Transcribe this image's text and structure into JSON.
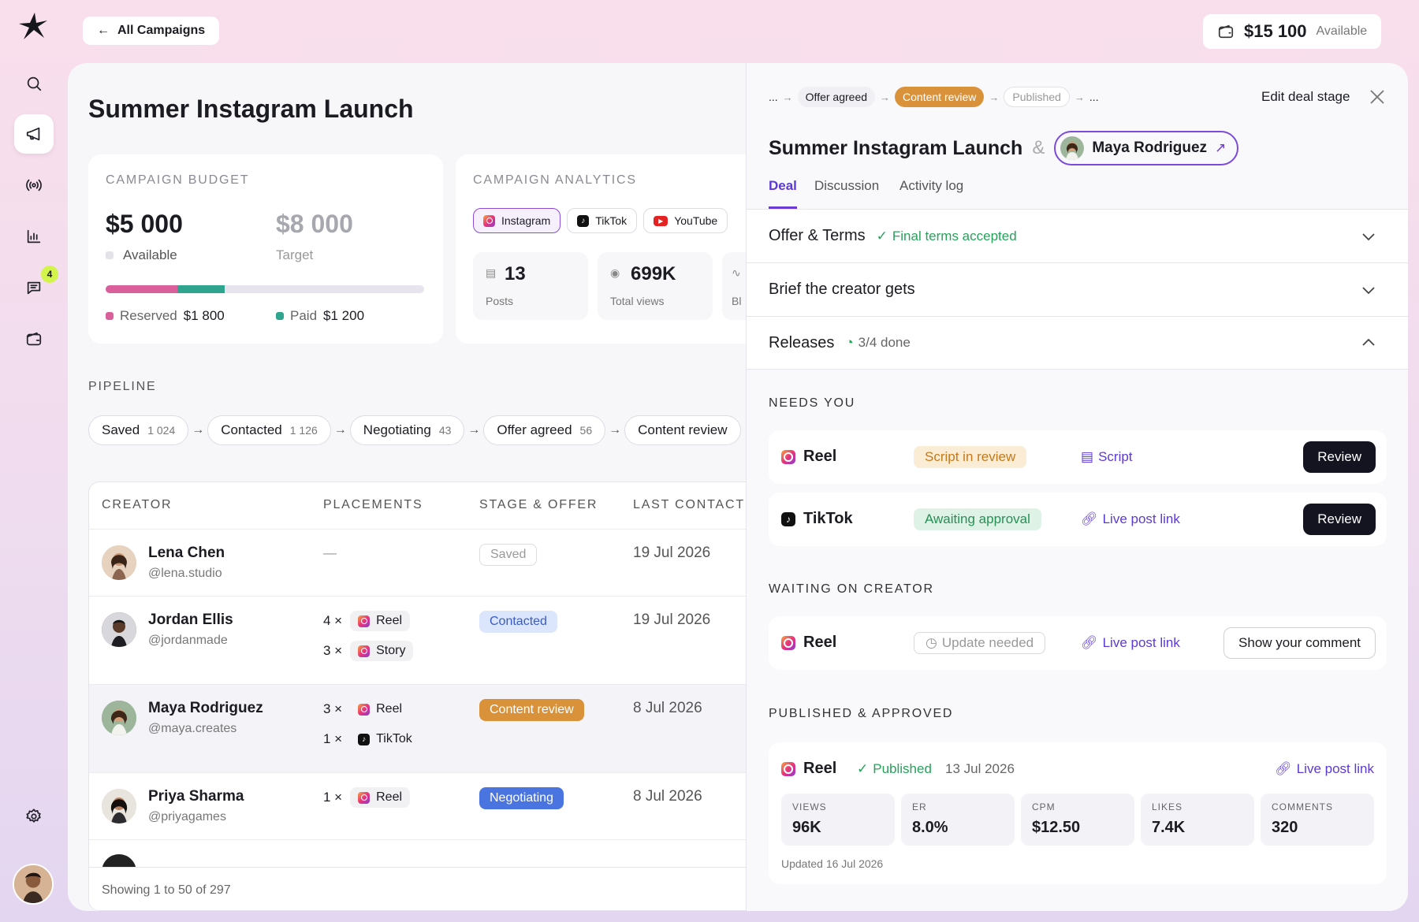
{
  "top": {
    "back_label": "All Campaigns",
    "wallet_amount": "$15 100",
    "wallet_caption": "Available"
  },
  "rail": {
    "messages_badge": "4"
  },
  "campaign": {
    "title": "Summer Instagram Launch"
  },
  "budget": {
    "heading": "CAMPAIGN BUDGET",
    "available_amount": "$5 000",
    "available_label": "Available",
    "target_amount": "$8 000",
    "target_label": "Target",
    "reserved_label": "Reserved",
    "reserved_amount": "$1 800",
    "paid_label": "Paid",
    "paid_amount": "$1 200",
    "reserved_fraction": 0.225,
    "paid_fraction": 0.15,
    "reserved_color": "#d9609b",
    "paid_color": "#2fa58f"
  },
  "analytics": {
    "heading": "CAMPAIGN ANALYTICS",
    "platforms": [
      "Instagram",
      "TikTok",
      "YouTube"
    ],
    "posts_value": "13",
    "posts_label": "Posts",
    "views_value": "699K",
    "views_label": "Total views",
    "third_label_fragment": "Bl"
  },
  "pipeline": {
    "heading": "PIPELINE",
    "stages": [
      {
        "label": "Saved",
        "count": "1 024"
      },
      {
        "label": "Contacted",
        "count": "1 126"
      },
      {
        "label": "Negotiating",
        "count": "43"
      },
      {
        "label": "Offer agreed",
        "count": "56"
      },
      {
        "label": "Content review",
        "count": ""
      }
    ]
  },
  "table": {
    "headers": [
      "CREATOR",
      "PLACEMENTS",
      "STAGE & OFFER",
      "LAST CONTACT"
    ],
    "rows": [
      {
        "name": "Lena Chen",
        "handle": "@lena.studio",
        "placements": "—",
        "stage": "Saved",
        "last": "19 Jul 2026"
      },
      {
        "name": "Jordan Ellis",
        "handle": "@jordanmade",
        "p1_count": "4 ×",
        "p1": "Reel",
        "p2_count": "3 ×",
        "p2": "Story",
        "stage": "Contacted",
        "last": "19 Jul 2026"
      },
      {
        "name": "Maya Rodriguez",
        "handle": "@maya.creates",
        "p1_count": "3 ×",
        "p1": "Reel",
        "p2_count": "1 ×",
        "p2": "TikTok",
        "stage": "Content review",
        "last": "8 Jul 2026"
      },
      {
        "name": "Priya Sharma",
        "handle": "@priyagames",
        "p1_count": "1 ×",
        "p1": "Reel",
        "stage": "Negotiating",
        "last": "8 Jul 2026"
      }
    ],
    "footer": "Showing 1 to 50 of 297"
  },
  "drawer": {
    "crumbs": [
      "...",
      "Offer agreed",
      "Content review",
      "Published",
      "..."
    ],
    "edit_stage": "Edit deal stage",
    "title": "Summer Instagram Launch",
    "amp": "&",
    "creator": "Maya Rodriguez",
    "tabs": [
      "Deal",
      "Discussion",
      "Activity log"
    ],
    "offer_title": "Offer & Terms",
    "offer_status": "Final terms accepted",
    "brief_title": "Brief the creator gets",
    "releases_title": "Releases",
    "releases_status": "3/4 done",
    "needs_you": "NEEDS YOU",
    "waiting": "WAITING ON CREATOR",
    "published": "PUBLISHED & APPROVED",
    "items": [
      {
        "kind": "Reel",
        "status": "Script in review",
        "link": "Script",
        "action": "Review"
      },
      {
        "kind": "TikTok",
        "status": "Awaiting approval",
        "link": "Live post link",
        "action": "Review"
      },
      {
        "kind": "Reel",
        "status": "Update needed",
        "link": "Live post link",
        "action": "Show your comment"
      }
    ],
    "pub": {
      "kind": "Reel",
      "status": "Published",
      "date": "13 Jul 2026",
      "link": "Live post link",
      "metrics": [
        {
          "label": "VIEWS",
          "value": "96K"
        },
        {
          "label": "ER",
          "value": "8.0%"
        },
        {
          "label": "CPM",
          "value": "$12.50"
        },
        {
          "label": "LIKES",
          "value": "7.4K"
        },
        {
          "label": "COMMENTS",
          "value": "320"
        }
      ],
      "updated": "Updated 16 Jul 2026"
    }
  }
}
